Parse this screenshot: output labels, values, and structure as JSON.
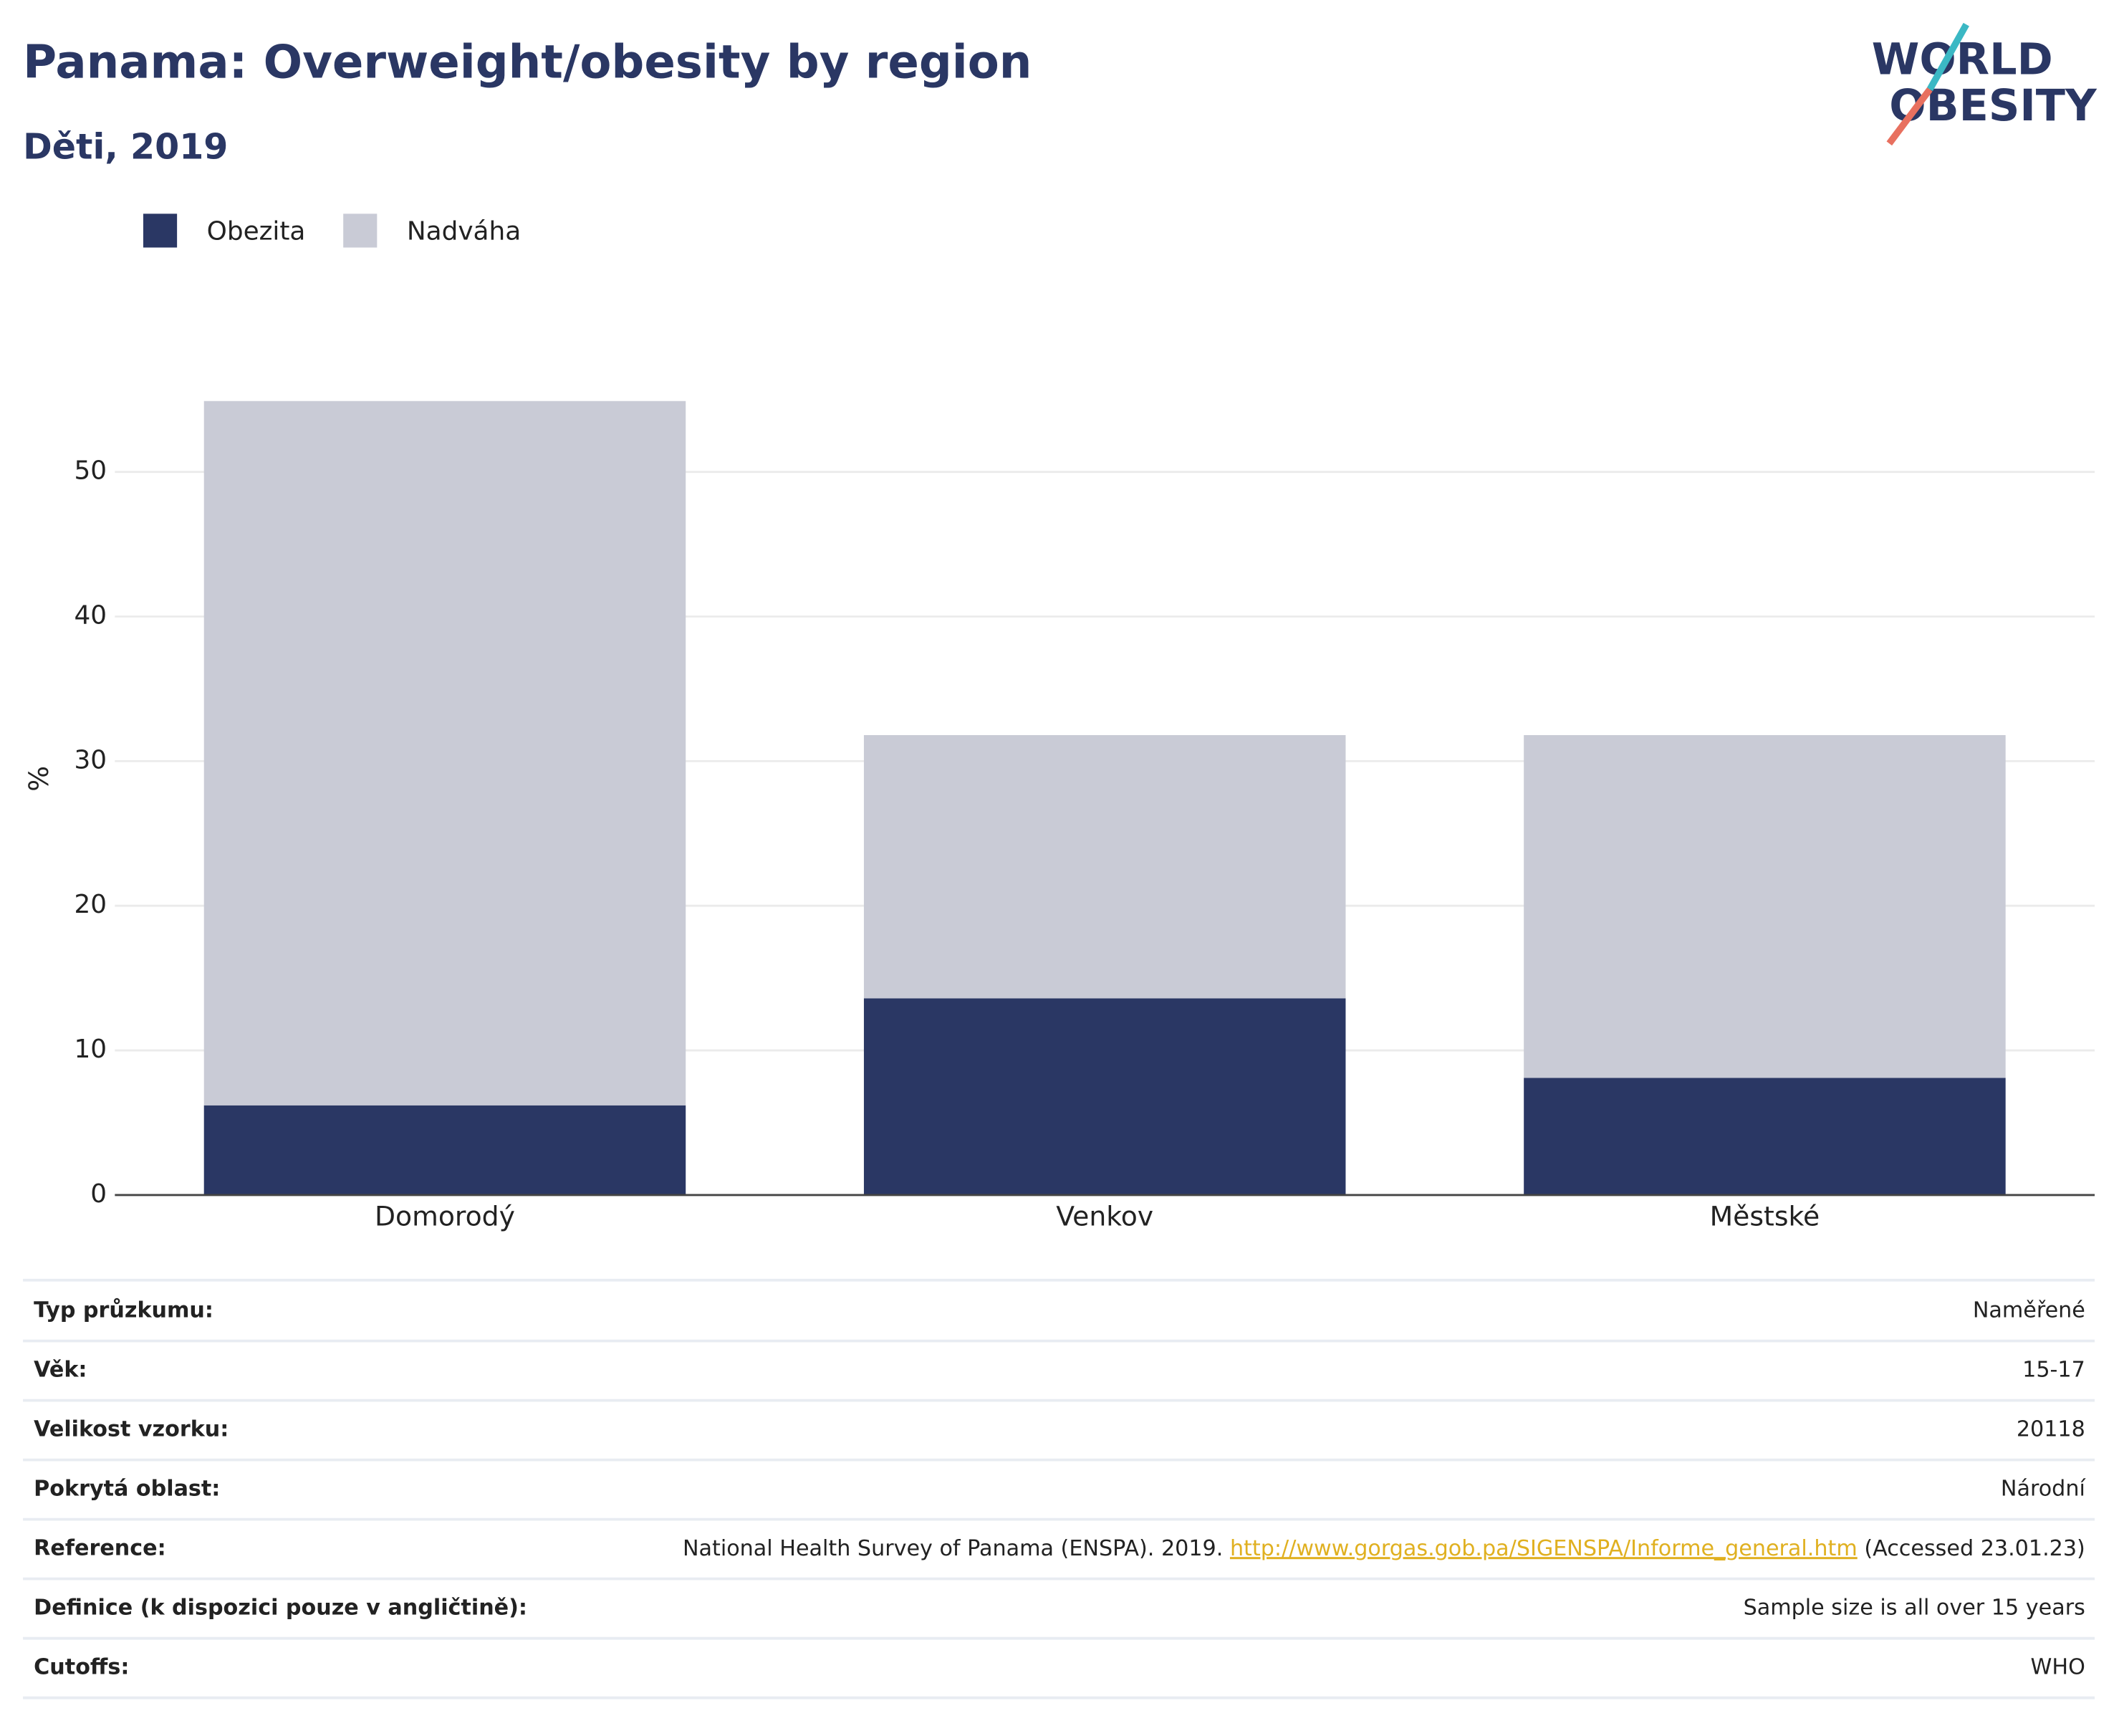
{
  "chart_data": {
    "type": "stacked-bar",
    "title": "Panama: Overweight/obesity by region",
    "subtitle": "Děti, 2019",
    "y_label": "%",
    "categories": [
      "Domorodý",
      "Venkov",
      "Městské"
    ],
    "series": [
      {
        "name": "Obezita",
        "color": "#2a3764",
        "values": [
          6.2,
          13.6,
          8.1
        ]
      },
      {
        "name": "Nadváha",
        "color": "#c9cbd6",
        "values": [
          48.7,
          18.2,
          23.7
        ]
      }
    ],
    "ylim": [
      0,
      60
    ],
    "yticks": [
      0,
      10,
      20,
      30,
      40,
      50
    ],
    "grid": true,
    "legend": "top-left"
  },
  "logo": [
    "WORLD",
    "OBESITY"
  ],
  "table": {
    "rows": [
      {
        "label": "Typ průzkumu:",
        "value": "Naměřené"
      },
      {
        "label": "Věk:",
        "value": "15-17"
      },
      {
        "label": "Velikost vzorku:",
        "value": "20118"
      },
      {
        "label": "Pokrytá oblast:",
        "value": "Národní"
      },
      {
        "label": "Reference:",
        "value": {
          "text": "National Health Survey of Panama (ENSPA). 2019.",
          "link": "http://www.gorgas.gob.pa/SIGENSPA/Informe_general.htm",
          "suffix": "(Accessed 23.01.23)"
        }
      },
      {
        "label": "Definice (k dispozici pouze v angličtině):",
        "value": "Sample size is all over 15 years"
      },
      {
        "label": "Cutoffs:",
        "value": "WHO"
      }
    ]
  }
}
